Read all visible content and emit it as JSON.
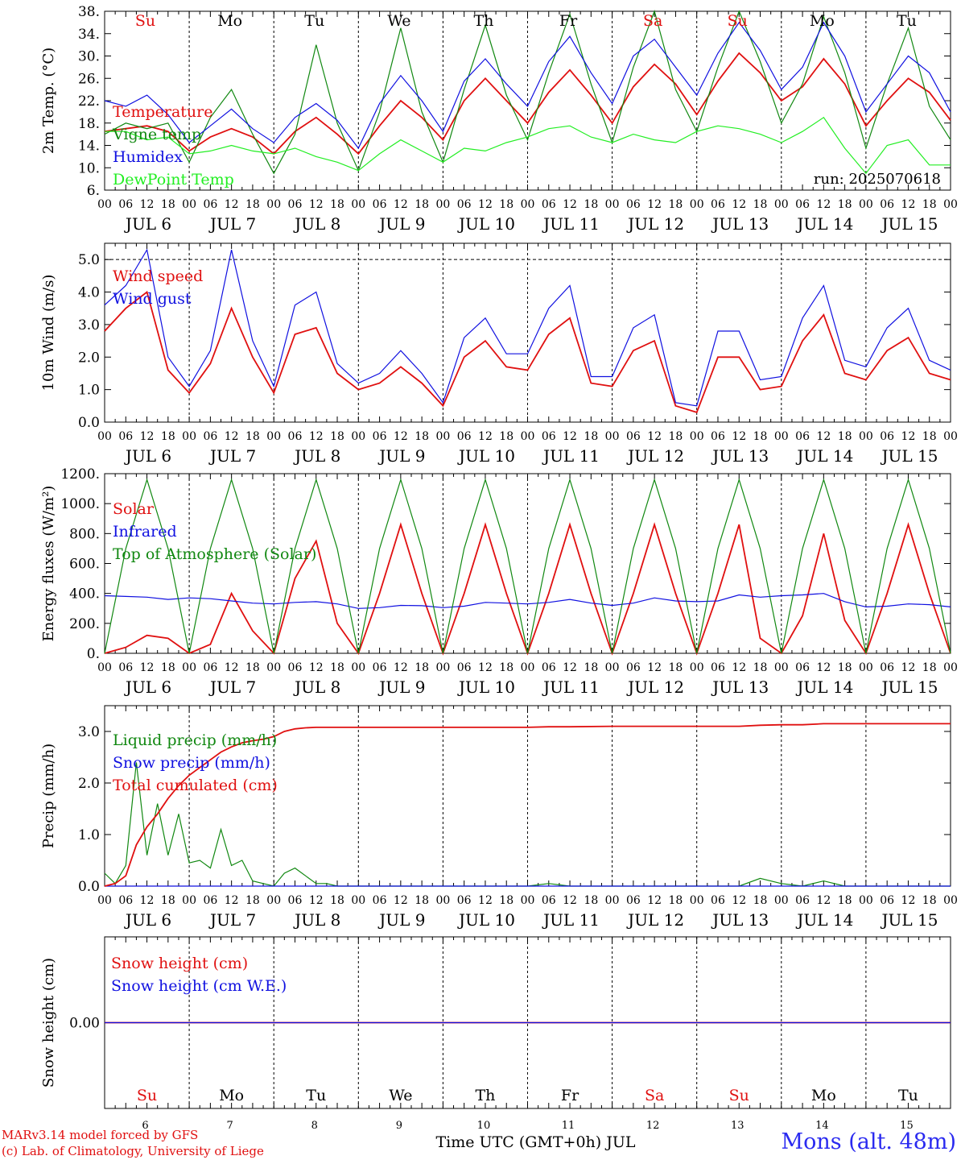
{
  "days": {
    "weekdays": [
      "Su",
      "Mo",
      "Tu",
      "We",
      "Th",
      "Fr",
      "Sa",
      "Su",
      "Mo",
      "Tu"
    ],
    "weekday_colors": [
      "#e01010",
      "#000000",
      "#000000",
      "#000000",
      "#000000",
      "#000000",
      "#e01010",
      "#e01010",
      "#000000",
      "#000000"
    ],
    "dates": [
      "JUL  6",
      "JUL  7",
      "JUL  8",
      "JUL  9",
      "JUL 10",
      "JUL 11",
      "JUL 12",
      "JUL 13",
      "JUL 14",
      "JUL 15"
    ],
    "day_numbers": [
      "6",
      "7",
      "8",
      "9",
      "10",
      "11",
      "12",
      "13",
      "14",
      "15"
    ],
    "hour_labels": [
      "00",
      "06",
      "12",
      "18"
    ],
    "end_label": "00"
  },
  "run_label": "run: 2025070618",
  "footer": {
    "credit_line1": "MARv3.14 model forced by GFS",
    "credit_line2": "(c) Lab. of Climatology, University of Liege",
    "axis_title": "Time UTC (GMT+0h) JUL",
    "station": "Mons (alt. 48m)"
  },
  "colors": {
    "red": "#e01010",
    "blue": "#1010e0",
    "dark_green": "#118811",
    "light_green": "#22ee22",
    "text_black": "#000000"
  },
  "chart_data": [
    {
      "type": "line",
      "ylabel": "2m Temp. (°C)",
      "yticks": [
        "6.",
        "10.",
        "14.",
        "18.",
        "22.",
        "26.",
        "30.",
        "34.",
        "38."
      ],
      "ylim": [
        6,
        38
      ],
      "x_unit": "hours since JUL 6 00 UTC",
      "x": [
        0,
        6,
        12,
        18,
        24,
        30,
        36,
        42,
        48,
        54,
        60,
        66,
        72,
        78,
        84,
        90,
        96,
        102,
        108,
        114,
        120,
        126,
        132,
        138,
        144,
        150,
        156,
        162,
        168,
        174,
        180,
        186,
        192,
        198,
        204,
        210,
        216,
        222,
        228,
        234,
        240
      ],
      "series": [
        {
          "name": "Temperature",
          "color": "#e01010",
          "values": [
            16.5,
            17.0,
            17.5,
            16.5,
            13.0,
            15.5,
            17.0,
            15.5,
            12.5,
            16.5,
            19.0,
            16.0,
            12.5,
            17.5,
            22.0,
            19.0,
            15.0,
            22.0,
            26.0,
            22.0,
            18.0,
            23.5,
            27.5,
            23.0,
            18.0,
            24.5,
            28.5,
            25.0,
            19.5,
            25.5,
            30.5,
            27.0,
            22.0,
            24.5,
            29.5,
            25.0,
            17.5,
            22.0,
            26.0,
            23.5,
            18.5
          ]
        },
        {
          "name": "Vigne temp",
          "color": "#118811",
          "values": [
            16.0,
            18.0,
            17.0,
            18.0,
            11.0,
            19.0,
            24.0,
            16.0,
            9.0,
            16.0,
            32.0,
            18.0,
            9.5,
            20.0,
            35.0,
            20.0,
            11.0,
            24.0,
            35.5,
            23.0,
            15.0,
            27.0,
            37.5,
            25.0,
            14.5,
            28.0,
            38.0,
            24.0,
            16.5,
            28.0,
            38.0,
            29.0,
            18.0,
            25.0,
            37.0,
            27.0,
            13.5,
            25.0,
            35.0,
            21.0,
            15.0
          ]
        },
        {
          "name": "Humidex",
          "color": "#1010e0",
          "values": [
            22.0,
            21.0,
            23.0,
            19.5,
            14.5,
            17.5,
            20.5,
            17.0,
            14.5,
            19.0,
            21.5,
            18.5,
            13.5,
            21.5,
            26.5,
            22.0,
            16.5,
            25.5,
            29.5,
            25.0,
            21.0,
            29.0,
            33.5,
            27.0,
            21.5,
            30.0,
            33.0,
            28.0,
            23.0,
            30.5,
            36.0,
            31.0,
            24.0,
            28.0,
            36.0,
            30.0,
            20.0,
            25.0,
            30.0,
            27.0,
            20.0
          ]
        },
        {
          "name": "DewPoint Temp",
          "color": "#22ee22",
          "values": [
            16.5,
            16.5,
            15.0,
            15.5,
            12.5,
            13.0,
            14.0,
            13.0,
            12.5,
            13.5,
            12.0,
            11.0,
            9.5,
            12.5,
            15.0,
            13.0,
            11.0,
            13.5,
            13.0,
            14.5,
            15.5,
            17.0,
            17.5,
            15.5,
            14.5,
            16.0,
            15.0,
            14.5,
            16.5,
            17.5,
            17.0,
            16.0,
            14.5,
            16.5,
            19.0,
            13.5,
            9.0,
            14.0,
            15.0,
            10.5,
            10.5
          ]
        }
      ]
    },
    {
      "type": "line",
      "ylabel": "10m Wind (m/s)",
      "yticks": [
        "0.0",
        "1.0",
        "2.0",
        "3.0",
        "4.0",
        "5.0"
      ],
      "ylim": [
        0,
        5.5
      ],
      "reference_line": 5.0,
      "x_unit": "hours since JUL 6 00 UTC",
      "x": [
        0,
        6,
        12,
        18,
        24,
        30,
        36,
        42,
        48,
        54,
        60,
        66,
        72,
        78,
        84,
        90,
        96,
        102,
        108,
        114,
        120,
        126,
        132,
        138,
        144,
        150,
        156,
        162,
        168,
        174,
        180,
        186,
        192,
        198,
        204,
        210,
        216,
        222,
        228,
        234,
        240
      ],
      "series": [
        {
          "name": "Wind speed",
          "color": "#e01010",
          "values": [
            2.8,
            3.5,
            4.0,
            1.6,
            0.9,
            1.8,
            3.5,
            2.0,
            0.9,
            2.7,
            2.9,
            1.5,
            1.0,
            1.2,
            1.7,
            1.2,
            0.5,
            2.0,
            2.5,
            1.7,
            1.6,
            2.7,
            3.2,
            1.2,
            1.1,
            2.2,
            2.5,
            0.5,
            0.3,
            2.0,
            2.0,
            1.0,
            1.1,
            2.5,
            3.3,
            1.5,
            1.3,
            2.2,
            2.6,
            1.5,
            1.3
          ]
        },
        {
          "name": "Wind gust",
          "color": "#1010e0",
          "values": [
            3.6,
            4.2,
            5.3,
            2.0,
            1.1,
            2.2,
            5.3,
            2.5,
            1.1,
            3.6,
            4.0,
            1.8,
            1.2,
            1.5,
            2.2,
            1.5,
            0.6,
            2.6,
            3.2,
            2.1,
            2.1,
            3.5,
            4.2,
            1.4,
            1.4,
            2.9,
            3.3,
            0.6,
            0.5,
            2.8,
            2.8,
            1.3,
            1.4,
            3.2,
            4.2,
            1.9,
            1.7,
            2.9,
            3.5,
            1.9,
            1.6
          ]
        }
      ]
    },
    {
      "type": "line",
      "ylabel": "Energy fluxes (W/m²)",
      "yticks": [
        "0.",
        "200.",
        "400.",
        "600.",
        "800.",
        "1000.",
        "1200."
      ],
      "ylim": [
        0,
        1200
      ],
      "x_unit": "hours since JUL 6 00 UTC",
      "x": [
        0,
        6,
        12,
        18,
        24,
        30,
        36,
        42,
        48,
        54,
        60,
        66,
        72,
        78,
        84,
        90,
        96,
        102,
        108,
        114,
        120,
        126,
        132,
        138,
        144,
        150,
        156,
        162,
        168,
        174,
        180,
        186,
        192,
        198,
        204,
        210,
        216,
        222,
        228,
        234,
        240
      ],
      "series": [
        {
          "name": "Solar",
          "color": "#e01010",
          "values": [
            0,
            40,
            120,
            100,
            0,
            60,
            400,
            150,
            0,
            500,
            750,
            200,
            0,
            400,
            860,
            400,
            0,
            400,
            860,
            400,
            0,
            400,
            860,
            400,
            0,
            400,
            860,
            400,
            0,
            400,
            860,
            100,
            0,
            250,
            800,
            220,
            0,
            400,
            860,
            400,
            0
          ]
        },
        {
          "name": "Infrared",
          "color": "#1010e0",
          "values": [
            385,
            380,
            375,
            360,
            370,
            365,
            350,
            335,
            330,
            340,
            345,
            330,
            300,
            305,
            320,
            318,
            305,
            315,
            340,
            335,
            330,
            340,
            360,
            335,
            320,
            335,
            370,
            350,
            345,
            350,
            390,
            375,
            385,
            390,
            400,
            345,
            310,
            315,
            330,
            325,
            310
          ]
        },
        {
          "name": "Top of Atmosphere (Solar)",
          "color": "#118811",
          "values": [
            0,
            700,
            1160,
            700,
            0,
            700,
            1160,
            700,
            0,
            700,
            1160,
            700,
            0,
            700,
            1160,
            700,
            0,
            700,
            1160,
            700,
            0,
            700,
            1160,
            700,
            0,
            700,
            1160,
            700,
            0,
            700,
            1160,
            700,
            0,
            700,
            1160,
            700,
            0,
            700,
            1160,
            700,
            0
          ]
        }
      ]
    },
    {
      "type": "line",
      "ylabel": "Precip (mm/h)",
      "yticks": [
        "0.0",
        "1.0",
        "2.0",
        "3.0"
      ],
      "ylim": [
        0,
        3.5
      ],
      "x_unit": "hours since JUL 6 00 UTC",
      "x": [
        0,
        3,
        6,
        9,
        12,
        15,
        18,
        21,
        24,
        27,
        30,
        33,
        36,
        39,
        42,
        45,
        48,
        51,
        54,
        57,
        60,
        63,
        66,
        72,
        96,
        120,
        126,
        132,
        144,
        168,
        180,
        186,
        192,
        198,
        204,
        210,
        216,
        240
      ],
      "series": [
        {
          "name": "Liquid precip (mm/h)",
          "color": "#118811",
          "values": [
            0.25,
            0.05,
            0.4,
            2.4,
            0.6,
            1.6,
            0.6,
            1.4,
            0.45,
            0.5,
            0.35,
            1.1,
            0.4,
            0.5,
            0.1,
            0.05,
            0.0,
            0.25,
            0.35,
            0.2,
            0.05,
            0.05,
            0.0,
            0.0,
            0.0,
            0.0,
            0.05,
            0.0,
            0.0,
            0.0,
            0.0,
            0.15,
            0.05,
            0.0,
            0.1,
            0.0,
            0.0,
            0.0
          ]
        },
        {
          "name": "Snow precip (mm/h)",
          "color": "#1010e0",
          "values": [
            0,
            0,
            0,
            0,
            0,
            0,
            0,
            0,
            0,
            0,
            0,
            0,
            0,
            0,
            0,
            0,
            0,
            0,
            0,
            0,
            0,
            0,
            0,
            0,
            0,
            0,
            0,
            0,
            0,
            0,
            0,
            0,
            0,
            0,
            0,
            0,
            0,
            0
          ]
        },
        {
          "name": "Total cumulated (cm)",
          "color": "#e01010",
          "values": [
            0.0,
            0.05,
            0.2,
            0.8,
            1.15,
            1.4,
            1.7,
            1.95,
            2.15,
            2.3,
            2.45,
            2.6,
            2.7,
            2.78,
            2.82,
            2.85,
            2.9,
            3.0,
            3.05,
            3.07,
            3.08,
            3.08,
            3.08,
            3.08,
            3.08,
            3.08,
            3.09,
            3.09,
            3.1,
            3.1,
            3.1,
            3.12,
            3.13,
            3.13,
            3.15,
            3.15,
            3.15,
            3.15
          ]
        }
      ]
    },
    {
      "type": "line",
      "ylabel": "Snow height (cm)",
      "yticks": [
        "0.00"
      ],
      "ylim": [
        -1,
        1
      ],
      "x_unit": "hours since JUL 6 00 UTC",
      "x": [
        0,
        240
      ],
      "series": [
        {
          "name": "Snow height (cm)",
          "color": "#e01010",
          "values": [
            0,
            0
          ]
        },
        {
          "name": "Snow height (cm W.E.)",
          "color": "#1010e0",
          "values": [
            0,
            0
          ]
        }
      ]
    }
  ]
}
